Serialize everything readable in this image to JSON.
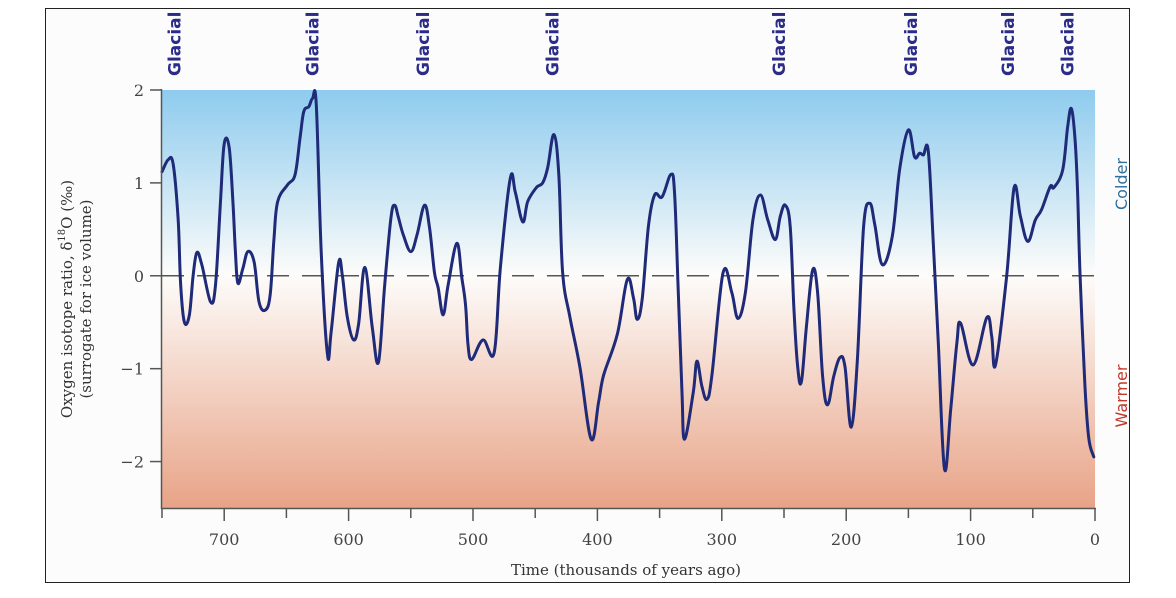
{
  "colors": {
    "curve": "#1f2a78",
    "glacial_text": "#2b2b88",
    "colder_text": "#2f6f99",
    "warmer_text": "#c0392b",
    "grad_top": "#8ecbee",
    "grad_mid": "#fdfcfa",
    "grad_bottom": "#e8a387"
  },
  "chart_data": {
    "type": "line",
    "title": "",
    "xlabel": "Time (thousands of years ago)",
    "ylabel_line1": "Oxygen isotope ratio, δ",
    "ylabel_sup": "18",
    "ylabel_line1_end": "O (‰)",
    "ylabel_line2": "(surrogate for ice volume)",
    "xlim": [
      750,
      0
    ],
    "ylim": [
      -2.5,
      2
    ],
    "x_ticks": [
      700,
      600,
      500,
      400,
      300,
      200,
      100,
      0
    ],
    "x_tick_labels": [
      "700",
      "600",
      "500",
      "400",
      "300",
      "200",
      "100",
      "0"
    ],
    "x_minor_ticks": [
      750,
      650,
      550,
      450,
      350,
      250,
      150,
      50
    ],
    "y_ticks": [
      2,
      1,
      0,
      -1,
      -2
    ],
    "y_tick_labels": [
      "2",
      "1",
      "0",
      "−1",
      "−2"
    ],
    "reference_line": {
      "y": 0,
      "style": "dashed"
    },
    "side_labels": {
      "colder": "Colder",
      "warmer": "Warmer"
    },
    "glacial_label": "Glacial",
    "glacial_markers_x": [
      740,
      629,
      540,
      436,
      254,
      148,
      70,
      22
    ],
    "series": [
      {
        "name": "δ18O",
        "points": [
          [
            750,
            1.12
          ],
          [
            745,
            1.25
          ],
          [
            741,
            1.2
          ],
          [
            737,
            0.6
          ],
          [
            735,
            -0.1
          ],
          [
            732,
            -0.5
          ],
          [
            728,
            -0.42
          ],
          [
            725,
            0
          ],
          [
            722,
            0.25
          ],
          [
            718,
            0.12
          ],
          [
            711,
            -0.28
          ],
          [
            707,
            -0.1
          ],
          [
            703,
            0.8
          ],
          [
            700,
            1.42
          ],
          [
            696,
            1.38
          ],
          [
            693,
            0.8
          ],
          [
            691,
            0.26
          ],
          [
            689,
            -0.08
          ],
          [
            685,
            0.08
          ],
          [
            681,
            0.26
          ],
          [
            676,
            0.15
          ],
          [
            672,
            -0.28
          ],
          [
            667,
            -0.37
          ],
          [
            663,
            -0.2
          ],
          [
            660,
            0.4
          ],
          [
            657,
            0.8
          ],
          [
            649,
            0.98
          ],
          [
            643,
            1.09
          ],
          [
            639,
            1.49
          ],
          [
            636,
            1.77
          ],
          [
            632,
            1.82
          ],
          [
            629,
            1.91
          ],
          [
            626,
            1.84
          ],
          [
            622,
            0.26
          ],
          [
            617,
            -0.85
          ],
          [
            614,
            -0.6
          ],
          [
            608,
            0.14
          ],
          [
            605,
            0.0
          ],
          [
            601,
            -0.45
          ],
          [
            596,
            -0.69
          ],
          [
            592,
            -0.52
          ],
          [
            587,
            0.09
          ],
          [
            581,
            -0.55
          ],
          [
            576,
            -0.93
          ],
          [
            571,
            -0.1
          ],
          [
            566,
            0.62
          ],
          [
            563,
            0.76
          ],
          [
            560,
            0.63
          ],
          [
            556,
            0.44
          ],
          [
            550,
            0.26
          ],
          [
            545,
            0.44
          ],
          [
            539,
            0.76
          ],
          [
            535,
            0.52
          ],
          [
            531,
            0.04
          ],
          [
            528,
            -0.13
          ],
          [
            524,
            -0.42
          ],
          [
            520,
            -0.1
          ],
          [
            513,
            0.35
          ],
          [
            509,
            -0.02
          ],
          [
            506,
            -0.31
          ],
          [
            504,
            -0.74
          ],
          [
            501,
            -0.9
          ],
          [
            492,
            -0.69
          ],
          [
            483,
            -0.83
          ],
          [
            478,
            0.09
          ],
          [
            470,
            1.05
          ],
          [
            466,
            0.9
          ],
          [
            460,
            0.58
          ],
          [
            456,
            0.8
          ],
          [
            449,
            0.95
          ],
          [
            444,
            1.0
          ],
          [
            440,
            1.16
          ],
          [
            435,
            1.52
          ],
          [
            431,
            1.09
          ],
          [
            428,
            0.04
          ],
          [
            422,
            -0.45
          ],
          [
            414,
            -0.99
          ],
          [
            405,
            -1.76
          ],
          [
            399,
            -1.36
          ],
          [
            395,
            -1.07
          ],
          [
            384,
            -0.63
          ],
          [
            376,
            -0.04
          ],
          [
            371,
            -0.24
          ],
          [
            368,
            -0.47
          ],
          [
            364,
            -0.25
          ],
          [
            359,
            0.53
          ],
          [
            354,
            0.87
          ],
          [
            348,
            0.85
          ],
          [
            341,
            1.09
          ],
          [
            338,
            0.9
          ],
          [
            335,
            -0.18
          ],
          [
            332,
            -1.26
          ],
          [
            330,
            -1.76
          ],
          [
            323,
            -1.26
          ],
          [
            320,
            -0.92
          ],
          [
            316,
            -1.19
          ],
          [
            312,
            -1.33
          ],
          [
            308,
            -1.08
          ],
          [
            299,
            0.03
          ],
          [
            292,
            -0.18
          ],
          [
            287,
            -0.46
          ],
          [
            281,
            -0.18
          ],
          [
            275,
            0.6
          ],
          [
            269,
            0.87
          ],
          [
            263,
            0.6
          ],
          [
            257,
            0.39
          ],
          [
            253,
            0.64
          ],
          [
            249,
            0.76
          ],
          [
            245,
            0.53
          ],
          [
            242,
            -0.37
          ],
          [
            239,
            -0.98
          ],
          [
            236,
            -1.14
          ],
          [
            232,
            -0.55
          ],
          [
            227,
            0.06
          ],
          [
            223,
            -0.18
          ],
          [
            219,
            -1.08
          ],
          [
            215,
            -1.39
          ],
          [
            210,
            -1.08
          ],
          [
            205,
            -0.88
          ],
          [
            201,
            -0.98
          ],
          [
            196,
            -1.63
          ],
          [
            191,
            -0.9
          ],
          [
            186,
            0.53
          ],
          [
            181,
            0.78
          ],
          [
            177,
            0.55
          ],
          [
            171,
            0.12
          ],
          [
            163,
            0.42
          ],
          [
            157,
            1.15
          ],
          [
            150,
            1.57
          ],
          [
            145,
            1.28
          ],
          [
            141,
            1.32
          ],
          [
            138,
            1.3
          ],
          [
            134,
            1.34
          ],
          [
            130,
            0.35
          ],
          [
            126,
            -0.72
          ],
          [
            121,
            -2.08
          ],
          [
            116,
            -1.44
          ],
          [
            111,
            -0.72
          ],
          [
            108,
            -0.51
          ],
          [
            98,
            -0.96
          ],
          [
            87,
            -0.45
          ],
          [
            83,
            -0.65
          ],
          [
            80,
            -0.96
          ],
          [
            71,
            0.0
          ],
          [
            65,
            0.95
          ],
          [
            60,
            0.64
          ],
          [
            54,
            0.37
          ],
          [
            48,
            0.6
          ],
          [
            43,
            0.71
          ],
          [
            36,
            0.96
          ],
          [
            33,
            0.95
          ],
          [
            26,
            1.14
          ],
          [
            22,
            1.6
          ],
          [
            19,
            1.8
          ],
          [
            16,
            1.46
          ],
          [
            14,
            0.9
          ],
          [
            12,
            0
          ],
          [
            8,
            -1.2
          ],
          [
            5,
            -1.75
          ],
          [
            1,
            -1.95
          ]
        ]
      }
    ],
    "grid": false,
    "legend": "none"
  }
}
